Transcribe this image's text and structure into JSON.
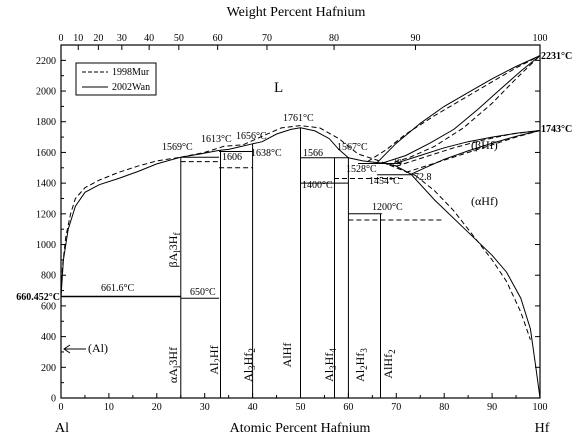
{
  "top_axis": {
    "title": "Weight Percent Hafnium",
    "ticks": [
      {
        "wt": 0,
        "at": 0,
        "label": "0"
      },
      {
        "wt": 10,
        "at": 3.6,
        "label": "10"
      },
      {
        "wt": 20,
        "at": 7.8,
        "label": "20"
      },
      {
        "wt": 30,
        "at": 12.7,
        "label": "30"
      },
      {
        "wt": 40,
        "at": 18.4,
        "label": "40"
      },
      {
        "wt": 50,
        "at": 24.6,
        "label": "50"
      },
      {
        "wt": 60,
        "at": 32.7,
        "label": "60"
      },
      {
        "wt": 70,
        "at": 43.0,
        "label": "70"
      },
      {
        "wt": 80,
        "at": 57.0,
        "label": "80"
      },
      {
        "wt": 90,
        "at": 74.0,
        "label": "90"
      },
      {
        "wt": 100,
        "at": 100,
        "label": "100"
      }
    ],
    "labeled": [
      "0",
      "10",
      "20",
      "30",
      "40",
      "50",
      "60",
      "70",
      "80",
      "90",
      "100"
    ]
  },
  "bottom_axis": {
    "title": "Atomic Percent Hafnium",
    "left_end": "Al",
    "right_end": "Hf",
    "ticks": [
      "0",
      "10",
      "20",
      "30",
      "40",
      "50",
      "60",
      "70",
      "80",
      "90",
      "100"
    ],
    "range": [
      0,
      100
    ]
  },
  "y_axis": {
    "range": [
      0,
      2300
    ],
    "ticks": [
      "0",
      "200",
      "400",
      "600",
      "800",
      "1000",
      "1200",
      "1400",
      "1600",
      "1800",
      "2000",
      "2200"
    ]
  },
  "legend": {
    "entries": [
      {
        "style": "dashed",
        "label": "1998Mur"
      },
      {
        "style": "solid",
        "label": "2002Wan"
      }
    ]
  },
  "edge_labels": {
    "left_melt": "660.452°C",
    "right_melt": "2231°C",
    "right_transition": "1743°C"
  },
  "region_labels": {
    "liquid": "L",
    "beta_hf": "(βHf)",
    "alpha_hf": "(αHf)",
    "al": "(Al)"
  },
  "temperature_labels": [
    "1569°C",
    "1613°C",
    "1656°C",
    "1761°C",
    "1567°C",
    "1606",
    "1638°C",
    "1566",
    "1528°C",
    "29",
    "1454°C",
    "72.8",
    "1400°C",
    "1200°C",
    "661.6°C",
    "650°C"
  ],
  "phase_labels": [
    {
      "id": "beta-al3hf",
      "text": "βAl3Hf",
      "sub": [
        [
          2,
          3
        ],
        [
          5,
          6
        ]
      ]
    },
    {
      "id": "alpha-al3hf",
      "text": "αAl3Hf",
      "sub": [
        [
          2,
          3
        ]
      ]
    },
    {
      "id": "al2hf",
      "text": "Al2Hf",
      "sub": [
        [
          2,
          3
        ]
      ]
    },
    {
      "id": "al3hf2",
      "text": "Al3Hf2",
      "sub": [
        [
          2,
          3
        ],
        [
          5,
          6
        ]
      ]
    },
    {
      "id": "alhf",
      "text": "AlHf",
      "sub": []
    },
    {
      "id": "al3hf4",
      "text": "Al3Hf4",
      "sub": [
        [
          2,
          3
        ],
        [
          5,
          6
        ]
      ]
    },
    {
      "id": "al2hf3",
      "text": "Al2Hf3",
      "sub": [
        [
          2,
          3
        ],
        [
          5,
          6
        ]
      ]
    },
    {
      "id": "alhf2",
      "text": "AlHf2",
      "sub": [
        [
          4,
          5
        ]
      ]
    }
  ],
  "chart_data": {
    "type": "line",
    "xlabel": "Atomic Percent Hafnium",
    "x2label": "Weight Percent Hafnium",
    "xlim": [
      0,
      100
    ],
    "ylim": [
      0,
      2300
    ],
    "series": [
      {
        "name": "2002Wan",
        "style": "solid",
        "curves": [
          {
            "part": "liquidus-al-side",
            "points": [
              [
                0,
                660
              ],
              [
                0.5,
                900
              ],
              [
                1.5,
                1100
              ],
              [
                3,
                1250
              ],
              [
                5,
                1340
              ],
              [
                8,
                1390
              ],
              [
                12,
                1430
              ],
              [
                16,
                1475
              ],
              [
                20,
                1525
              ],
              [
                25,
                1569
              ]
            ]
          },
          {
            "part": "liquidus-al2hf",
            "points": [
              [
                25,
                1569
              ],
              [
                29,
                1590
              ],
              [
                33,
                1613
              ],
              [
                35,
                1620
              ],
              [
                37,
                1635
              ],
              [
                40,
                1656
              ]
            ]
          },
          {
            "part": "liquidus-alhf",
            "points": [
              [
                40,
                1656
              ],
              [
                42,
                1670
              ],
              [
                45,
                1720
              ],
              [
                48,
                1750
              ],
              [
                50,
                1761
              ],
              [
                53,
                1740
              ],
              [
                56,
                1690
              ],
              [
                58,
                1620
              ],
              [
                60,
                1566
              ]
            ]
          },
          {
            "part": "liquidus-hf-side",
            "points": [
              [
                60,
                1566
              ],
              [
                63,
                1545
              ],
              [
                66,
                1534
              ],
              [
                68,
                1530
              ],
              [
                70,
                1510
              ],
              [
                73,
                1460
              ],
              [
                78,
                1290
              ],
              [
                85,
                1080
              ],
              [
                90,
                930
              ],
              [
                93,
                820
              ],
              [
                96,
                650
              ],
              [
                98,
                450
              ],
              [
                99,
                230
              ],
              [
                100,
                0
              ]
            ]
          },
          {
            "part": "beta-liquidus",
            "points": [
              [
                66,
                1534
              ],
              [
                70,
                1660
              ],
              [
                75,
                1790
              ],
              [
                80,
                1900
              ],
              [
                85,
                1990
              ],
              [
                90,
                2080
              ],
              [
                95,
                2160
              ],
              [
                100,
                2231
              ]
            ]
          },
          {
            "part": "beta-solidus",
            "points": [
              [
                67,
                1530
              ],
              [
                72,
                1580
              ],
              [
                77,
                1660
              ],
              [
                82,
                1750
              ],
              [
                87,
                1880
              ],
              [
                92,
                2020
              ],
              [
                96,
                2130
              ],
              [
                100,
                2231
              ]
            ]
          },
          {
            "part": "beta-alpha-upper",
            "points": [
              [
                70,
                1530
              ],
              [
                75,
                1580
              ],
              [
                80,
                1630
              ],
              [
                85,
                1670
              ],
              [
                90,
                1700
              ],
              [
                95,
                1725
              ],
              [
                100,
                1743
              ]
            ]
          },
          {
            "part": "beta-alpha-lower",
            "points": [
              [
                72.8,
                1454
              ],
              [
                76,
                1500
              ],
              [
                80,
                1555
              ],
              [
                85,
                1610
              ],
              [
                90,
                1660
              ],
              [
                95,
                1705
              ],
              [
                100,
                1743
              ]
            ]
          },
          {
            "part": "invariant-29",
            "points": [
              [
                62,
                1528
              ],
              [
                71,
                1528
              ]
            ]
          },
          {
            "part": "invariant-1454",
            "points": [
              [
                66,
                1454
              ],
              [
                73,
                1454
              ]
            ]
          },
          {
            "part": "invariant-1400",
            "points": [
              [
                50,
                1400
              ],
              [
                60,
                1400
              ]
            ]
          },
          {
            "part": "invariant-1200",
            "points": [
              [
                60,
                1200
              ],
              [
                67,
                1200
              ]
            ]
          },
          {
            "part": "invariant-1566",
            "points": [
              [
                50,
                1566
              ],
              [
                60,
                1566
              ]
            ]
          },
          {
            "part": "invariant-1606",
            "points": [
              [
                33,
                1606
              ],
              [
                40,
                1606
              ]
            ]
          },
          {
            "part": "invariant-1569",
            "points": [
              [
                25,
                1569
              ],
              [
                33,
                1569
              ]
            ]
          },
          {
            "part": "eutectic-661.6",
            "points": [
              [
                0,
                661.6
              ],
              [
                25,
                661.6
              ]
            ]
          },
          {
            "part": "transition-650",
            "points": [
              [
                25,
                650
              ],
              [
                33,
                650
              ]
            ]
          },
          {
            "part": "line-al3hf",
            "points": [
              [
                25,
                0
              ],
              [
                25,
                1569
              ]
            ]
          },
          {
            "part": "line-al2hf",
            "points": [
              [
                33.3,
                0
              ],
              [
                33.3,
                1613
              ]
            ]
          },
          {
            "part": "line-al3hf2",
            "points": [
              [
                40,
                0
              ],
              [
                40,
                1656
              ]
            ]
          },
          {
            "part": "line-alhf",
            "points": [
              [
                50,
                0
              ],
              [
                50,
                1761
              ]
            ]
          },
          {
            "part": "line-al3hf4",
            "points": [
              [
                57.1,
                0
              ],
              [
                57.1,
                1566
              ]
            ]
          },
          {
            "part": "line-al2hf3",
            "points": [
              [
                60,
                0
              ],
              [
                60,
                1566
              ]
            ]
          },
          {
            "part": "line-alhf2",
            "points": [
              [
                66.7,
                0
              ],
              [
                66.7,
                1200
              ]
            ]
          }
        ]
      },
      {
        "name": "1998Mur",
        "style": "dashed",
        "curves": [
          {
            "part": "liquidus-al-side",
            "points": [
              [
                0,
                660
              ],
              [
                0.3,
                850
              ],
              [
                1,
                1050
              ],
              [
                2,
                1200
              ],
              [
                3,
                1300
              ],
              [
                5,
                1370
              ],
              [
                8,
                1420
              ],
              [
                12,
                1470
              ],
              [
                16,
                1510
              ],
              [
                20,
                1545
              ],
              [
                25,
                1569
              ]
            ]
          },
          {
            "part": "liquidus-mid",
            "points": [
              [
                25,
                1569
              ],
              [
                30,
                1600
              ],
              [
                34,
                1640
              ],
              [
                38,
                1650
              ],
              [
                42,
                1705
              ],
              [
                46,
                1760
              ],
              [
                50,
                1775
              ],
              [
                54,
                1760
              ],
              [
                58,
                1690
              ],
              [
                62,
                1590
              ],
              [
                66,
                1550
              ],
              [
                70,
                1500
              ],
              [
                74,
                1450
              ]
            ]
          },
          {
            "part": "liquidus-hf-side",
            "points": [
              [
                74,
                1450
              ],
              [
                78,
                1350
              ],
              [
                82,
                1220
              ],
              [
                86,
                1060
              ],
              [
                90,
                900
              ],
              [
                93,
                760
              ],
              [
                96,
                560
              ],
              [
                98,
                380
              ]
            ]
          },
          {
            "part": "beta-liquidus",
            "points": [
              [
                64,
                1540
              ],
              [
                68,
                1620
              ],
              [
                72,
                1720
              ],
              [
                78,
                1840
              ],
              [
                84,
                1950
              ],
              [
                90,
                2060
              ],
              [
                95,
                2150
              ],
              [
                100,
                2231
              ]
            ]
          },
          {
            "part": "beta-solidus",
            "points": [
              [
                68,
                1520
              ],
              [
                73,
                1570
              ],
              [
                78,
                1640
              ],
              [
                84,
                1760
              ],
              [
                90,
                1920
              ],
              [
                95,
                2080
              ],
              [
                100,
                2231
              ]
            ]
          },
          {
            "part": "beta-alpha-upper",
            "points": [
              [
                70,
                1510
              ],
              [
                76,
                1570
              ],
              [
                82,
                1630
              ],
              [
                88,
                1680
              ],
              [
                94,
                1720
              ],
              [
                100,
                1743
              ]
            ]
          },
          {
            "part": "beta-alpha-lower",
            "points": [
              [
                72,
                1470
              ],
              [
                78,
                1530
              ],
              [
                84,
                1590
              ],
              [
                90,
                1650
              ],
              [
                95,
                1700
              ],
              [
                100,
                1743
              ]
            ]
          },
          {
            "part": "invariant-1200",
            "points": [
              [
                60,
                1160
              ],
              [
                80,
                1160
              ]
            ]
          },
          {
            "part": "invariant-1454",
            "points": [
              [
                57,
                1430
              ],
              [
                72,
                1430
              ]
            ]
          },
          {
            "part": "invariant-1500",
            "points": [
              [
                33,
                1500
              ],
              [
                40,
                1500
              ]
            ]
          },
          {
            "part": "invariant-1540",
            "points": [
              [
                25,
                1540
              ],
              [
                33,
                1540
              ]
            ]
          }
        ]
      }
    ]
  }
}
